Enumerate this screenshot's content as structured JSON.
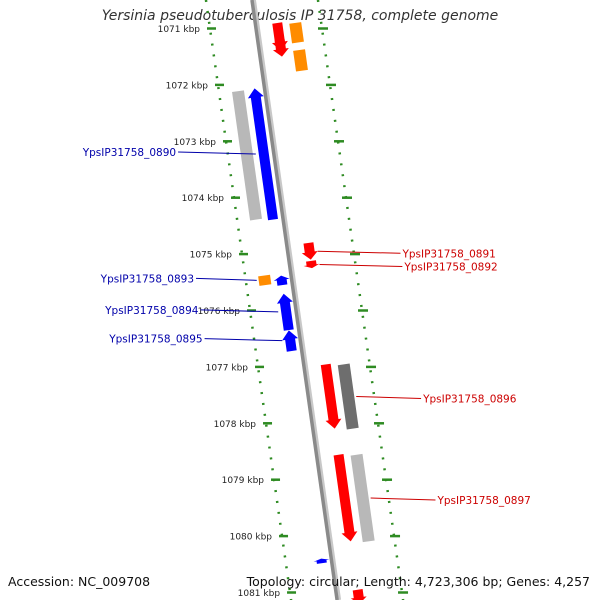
{
  "title": "Yersinia pseudotuberculosis IP 31758, complete genome",
  "accession": "Accession: NC_009708",
  "summary": "Topology: circular; Length: 4,723,306 bp; Genes: 4,257",
  "colors": {
    "forward_cds": "#ff0000",
    "reverse_cds": "#0000ff",
    "other_feature": "#ff8c00",
    "gray_light": "#b8b8b8",
    "gray_dark": "#6e6e6e",
    "backbone": "#8a8a8a",
    "tick": "#2e8b22",
    "forward_label": "#cc0000",
    "reverse_label": "#0000aa"
  },
  "axis": {
    "ticks": [
      {
        "label": "1071 kbp"
      },
      {
        "label": "1072 kbp"
      },
      {
        "label": "1073 kbp"
      },
      {
        "label": "1074 kbp"
      },
      {
        "label": "1075 kbp"
      },
      {
        "label": "1076 kbp"
      },
      {
        "label": "1077 kbp"
      },
      {
        "label": "1078 kbp"
      },
      {
        "label": "1079 kbp"
      },
      {
        "label": "1080 kbp"
      },
      {
        "label": "1081 kbp"
      }
    ]
  },
  "features": [
    {
      "kind": "forward_cds",
      "strand": "+",
      "ring": 1,
      "start": 1070.9,
      "end": 1071.4
    },
    {
      "kind": "other_feature",
      "strand": "+",
      "ring": 2,
      "start": 1070.9,
      "end": 1071.25
    },
    {
      "kind": "forward_cds",
      "strand": "+",
      "ring": 1,
      "start": 1071.2,
      "end": 1071.5
    },
    {
      "kind": "other_feature",
      "strand": "+",
      "ring": 2,
      "start": 1071.38,
      "end": 1071.75
    },
    {
      "kind": "gray_light",
      "strand": "-",
      "ring": 2,
      "start": 1072.1,
      "end": 1074.4
    },
    {
      "kind": "reverse_cds",
      "strand": "-",
      "ring": 1,
      "start": 1072.05,
      "end": 1074.4,
      "label": "YpsIP31758_0890"
    },
    {
      "kind": "forward_cds",
      "strand": "+",
      "ring": 1,
      "start": 1074.8,
      "end": 1075.1,
      "label": "YpsIP31758_0891"
    },
    {
      "kind": "forward_cds",
      "strand": "+",
      "ring": 1,
      "start": 1075.12,
      "end": 1075.25,
      "label": "YpsIP31758_0892"
    },
    {
      "kind": "other_feature",
      "strand": "-",
      "ring": 2,
      "start": 1075.38,
      "end": 1075.55,
      "label": "YpsIP31758_0893"
    },
    {
      "kind": "reverse_cds",
      "strand": "-",
      "ring": 1,
      "start": 1075.38,
      "end": 1075.55
    },
    {
      "kind": "reverse_cds",
      "strand": "-",
      "ring": 1,
      "start": 1075.7,
      "end": 1076.35,
      "label": "YpsIP31758_0894"
    },
    {
      "kind": "reverse_cds",
      "strand": "-",
      "ring": 1,
      "start": 1076.35,
      "end": 1076.72,
      "label": "YpsIP31758_0895"
    },
    {
      "kind": "forward_cds",
      "strand": "+",
      "ring": 1,
      "start": 1076.95,
      "end": 1078.1
    },
    {
      "kind": "gray_dark",
      "strand": "+",
      "ring": 2,
      "start": 1076.95,
      "end": 1078.1,
      "label": "YpsIP31758_0896"
    },
    {
      "kind": "forward_cds",
      "strand": "+",
      "ring": 1,
      "start": 1078.55,
      "end": 1080.1
    },
    {
      "kind": "gray_light",
      "strand": "+",
      "ring": 2,
      "start": 1078.55,
      "end": 1080.1,
      "label": "YpsIP31758_0897"
    },
    {
      "kind": "reverse_cds",
      "strand": "-",
      "ring": 1,
      "start": 1080.4,
      "end": 1080.48
    },
    {
      "kind": "forward_cds",
      "strand": "+",
      "ring": 1,
      "start": 1080.95,
      "end": 1081.2
    }
  ]
}
